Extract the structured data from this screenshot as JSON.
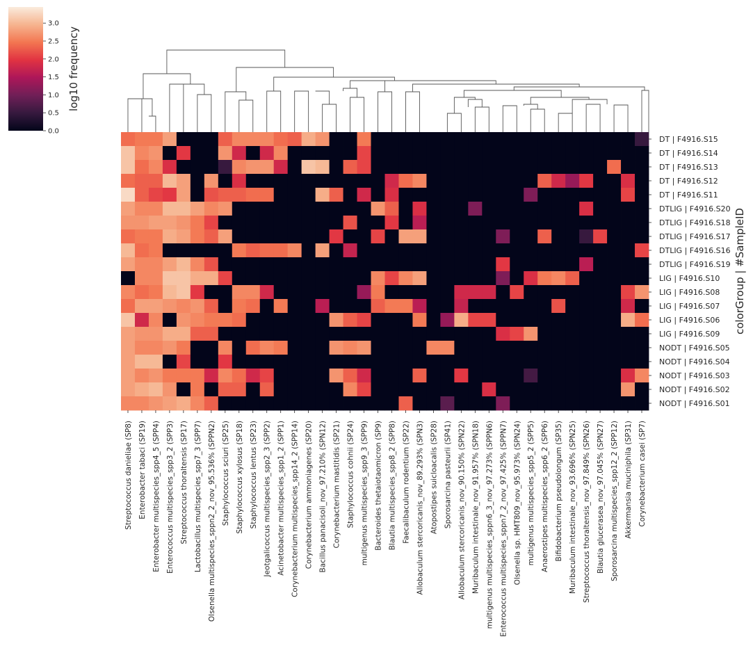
{
  "chart_data": {
    "type": "heatmap",
    "colorbar": {
      "label": "log10 frequency",
      "ticks": [
        0.0,
        0.5,
        1.0,
        1.5,
        2.0,
        2.5,
        3.0
      ],
      "tick_labels": [
        "0.0",
        "0.5",
        "1.0",
        "1.5",
        "2.0",
        "2.5",
        "3.0"
      ],
      "range": [
        0,
        3.45
      ],
      "colormap": "rocket",
      "colors": [
        "#03051a",
        "#36193e",
        "#701f57",
        "#ad1759",
        "#e13342",
        "#f37651",
        "#f6b48f",
        "#faebdd"
      ]
    },
    "ylabel": "colorGroup | #SampleID",
    "columns": [
      "Streptococcus danieliae (SP8)",
      "Enterobacter tabaci (SP19)",
      "Enterobacter multispecies_spp4_5 (SPP4)",
      "Enterococcus multispecies_spp3_2 (SPP3)",
      "Streptococcus thoraltensis (SP17)",
      "Lactobacillus multispecies_spp7_3 (SPP7)",
      "Olsenella multispecies_sppn2_2_nov_95.536% (SPPN2)",
      "Staphylococcus sciuri (SP25)",
      "Staphylococcus xylosus (SP18)",
      "Staphylococcus lentus (SP23)",
      "Jeotgalicoccus multispecies_spp2_3 (SPP2)",
      "Acinetobacter multispecies_spp1_2 (SPP1)",
      "Corynebacterium multispecies_spp14_2 (SPP14)",
      "Corynebacterium ammoniagenes (SP20)",
      "Bacillus panacisoli_nov_97.210% (SPN12)",
      "Corynebacterium mastitidis (SP21)",
      "Staphylococcus cohnii (SP24)",
      "multigenus multispecies_spp9_3 (SPP9)",
      "Bacteroides thetaiotaomicron (SP9)",
      "Blautia multispecies_spp8_2 (SPP8)",
      "Faecalibaculum rodentium (SP22)",
      "Allobaculum stercoricanis_nov_89.293% (SPN3)",
      "Atopostipes suicloacalis (SP28)",
      "Sporosarcina pasteurii (SP41)",
      "Allobaculum stercoricanis_nov_90.150% (SPN22)",
      "Muribaculum intestinale_nov_91.957% (SPN18)",
      "multigenus multispecies_sppn6_3_nov_97.273% (SPPN6)",
      "Enterococcus multispecies_sppn7_2_nov_97.425% (SPPN7)",
      "Olsenella sp. HMT809_nov_95.973% (SPN24)",
      "multigenus multispecies_spp5_2 (SPP5)",
      "Anaerostipes multispecies_spp6_2 (SPP6)",
      "Bifidobacterium pseudolongum (SP35)",
      "Muribaculum intestinale_nov_93.696% (SPN25)",
      "Streptococcus thoraltensis_nov_97.849% (SPN26)",
      "Blautia glucerasea_nov_97.045% (SPN27)",
      "Sporosarcina multispecies_spp12_2 (SPP12)",
      "Akkermansia muciniphila (SP31)",
      "Corynebacterium casei (SP7)"
    ],
    "rows": [
      "DT | F4916.S15",
      "DT | F4916.S14",
      "DT | F4916.S13",
      "DT | F4916.S12",
      "DT | F4916.S11",
      "DTLIG | F4916.S20",
      "DTLIG | F4916.S18",
      "DTLIG | F4916.S17",
      "DTLIG | F4916.S16",
      "DTLIG | F4916.S19",
      "LIG | F4916.S10",
      "LIG | F4916.S08",
      "LIG | F4916.S07",
      "LIG | F4916.S06",
      "LIG | F4916.S09",
      "NODT | F4916.S05",
      "NODT | F4916.S04",
      "NODT | F4916.S03",
      "NODT | F4916.S02",
      "NODT | F4916.S01"
    ],
    "values": [
      [
        2.4,
        2.5,
        2.5,
        2.8,
        0,
        0,
        0,
        2.3,
        2.6,
        2.6,
        2.6,
        2.4,
        2.3,
        2.9,
        2.7,
        0,
        0,
        2.5,
        0,
        0,
        0,
        0,
        0,
        0,
        0,
        0,
        0,
        0,
        0,
        0,
        0,
        0,
        0,
        0,
        0,
        0,
        0,
        0.5
      ],
      [
        3.1,
        2.6,
        2.7,
        0,
        2.0,
        0,
        0,
        2.7,
        1.8,
        0,
        1.8,
        2.6,
        0,
        0,
        0,
        0,
        0,
        2.1,
        0,
        0,
        0,
        0,
        0,
        0,
        0,
        0,
        0,
        0,
        0,
        0,
        0,
        0,
        0,
        0,
        0,
        0,
        0,
        0
      ],
      [
        3.1,
        2.4,
        2.6,
        1.9,
        0,
        0,
        0,
        0.5,
        2.6,
        2.7,
        2.7,
        1.8,
        0,
        3.1,
        3.0,
        0,
        2.3,
        2.1,
        0,
        0,
        0,
        0,
        0,
        0,
        0,
        0,
        0,
        0,
        0,
        0,
        0,
        0,
        0,
        0,
        0,
        2.4,
        0,
        0
      ],
      [
        2.4,
        2.3,
        2.3,
        3.0,
        2.8,
        0,
        2.7,
        0,
        1.9,
        0,
        0,
        0,
        0,
        0,
        0,
        0,
        0,
        0,
        0,
        1.8,
        2.4,
        2.6,
        0,
        0,
        0,
        0,
        0,
        0,
        0,
        0,
        2.3,
        1.8,
        1.3,
        2.0,
        0,
        0,
        1.9,
        0
      ],
      [
        3.3,
        2.3,
        2.1,
        2.0,
        2.8,
        0,
        2.2,
        2.3,
        2.3,
        2.4,
        2.4,
        0,
        0,
        0,
        2.9,
        2.3,
        0,
        1.8,
        0,
        1.9,
        0,
        0,
        0,
        0,
        0,
        0,
        0,
        0,
        0,
        1.1,
        0,
        0,
        0,
        0,
        0,
        0,
        2.1,
        0
      ],
      [
        2.8,
        2.6,
        2.6,
        3.0,
        3.0,
        2.8,
        2.6,
        2.7,
        0,
        0,
        0,
        0,
        0,
        0,
        0,
        0,
        0,
        0,
        2.7,
        2.3,
        0,
        1.9,
        0,
        0,
        0,
        1.1,
        0,
        0,
        0,
        0,
        0,
        0,
        0,
        1.9,
        0,
        0,
        0,
        0
      ],
      [
        2.7,
        2.7,
        2.8,
        2.8,
        2.7,
        2.5,
        2.1,
        0,
        0,
        0,
        0,
        0,
        0,
        0,
        0,
        0,
        2.2,
        0,
        0,
        2.0,
        0,
        1.6,
        0,
        0,
        0,
        0,
        0,
        0,
        0,
        0,
        0,
        0,
        0,
        0,
        0,
        0,
        0,
        0
      ],
      [
        2.4,
        2.5,
        2.5,
        2.9,
        2.8,
        2.5,
        2.3,
        2.8,
        0,
        0,
        0,
        0,
        0,
        0,
        0,
        2.0,
        0,
        0,
        2.1,
        0,
        2.8,
        2.8,
        0,
        0,
        0,
        0,
        0,
        1.1,
        0,
        0,
        2.3,
        0,
        0,
        0.5,
        2.1,
        0,
        0,
        0
      ],
      [
        3.0,
        2.4,
        2.5,
        0,
        0,
        0,
        0,
        0,
        2.5,
        2.3,
        2.4,
        2.4,
        2.6,
        0,
        2.8,
        0,
        1.7,
        0,
        0,
        0,
        0,
        0,
        0,
        0,
        0,
        0,
        0,
        0,
        0,
        0,
        0,
        0,
        0,
        0,
        0,
        0,
        0,
        2.1
      ],
      [
        2.8,
        2.6,
        2.6,
        2.8,
        3.0,
        2.6,
        2.2,
        0,
        0,
        0,
        0,
        0,
        0,
        0,
        0,
        0,
        0,
        0,
        0,
        0,
        0,
        0,
        0,
        0,
        0,
        0,
        0,
        2.0,
        0,
        0,
        0,
        0,
        0,
        1.6,
        0,
        0,
        0,
        0
      ],
      [
        0,
        2.6,
        2.6,
        3.1,
        3.1,
        2.9,
        2.9,
        2.1,
        0,
        0,
        0,
        0,
        0,
        0,
        0,
        0,
        0,
        0,
        2.6,
        2.1,
        2.6,
        2.8,
        0,
        0,
        0,
        0,
        0,
        1.1,
        0,
        1.9,
        2.5,
        2.6,
        2.3,
        0,
        0,
        0,
        0,
        0
      ],
      [
        2.6,
        2.4,
        2.5,
        3.0,
        3.1,
        2.0,
        0,
        0,
        2.6,
        2.6,
        1.8,
        0,
        0,
        0,
        0,
        0,
        0,
        1.3,
        2.5,
        0,
        0,
        0,
        0,
        0,
        1.8,
        1.8,
        1.8,
        0,
        2.1,
        0,
        0,
        0,
        0,
        0,
        0,
        0,
        2.1,
        2.7
      ],
      [
        2.4,
        2.8,
        2.8,
        2.7,
        2.6,
        2.7,
        2.3,
        0,
        2.5,
        2.4,
        0,
        2.5,
        0,
        0,
        1.6,
        0,
        0,
        0,
        2.3,
        2.5,
        2.5,
        1.6,
        0,
        0,
        1.7,
        0,
        0,
        0,
        0,
        0,
        0,
        2.2,
        0,
        0,
        0,
        0,
        1.8,
        0
      ],
      [
        3.1,
        1.8,
        2.6,
        0,
        2.7,
        2.6,
        2.5,
        2.5,
        2.4,
        0,
        0,
        0,
        0,
        0,
        0,
        2.7,
        2.3,
        2.1,
        0,
        0,
        0,
        2.5,
        0,
        1.3,
        2.9,
        2.1,
        2.1,
        0,
        0,
        0,
        0,
        0,
        0,
        0,
        0,
        0,
        2.9,
        2.4
      ],
      [
        2.8,
        2.7,
        2.7,
        2.9,
        2.9,
        2.3,
        2.3,
        0,
        0,
        0,
        0,
        0,
        0,
        0,
        0,
        0,
        0,
        0,
        0,
        0,
        0,
        0,
        0,
        0,
        0,
        0,
        0,
        1.9,
        2.1,
        2.7,
        0,
        0,
        0,
        0,
        0,
        0,
        0,
        0
      ],
      [
        2.8,
        2.6,
        2.6,
        2.7,
        2.5,
        0,
        0,
        2.6,
        0,
        2.4,
        2.6,
        2.5,
        0,
        0,
        0,
        2.7,
        2.6,
        2.7,
        0,
        0,
        0,
        0,
        2.6,
        2.6,
        0,
        0,
        0,
        0,
        0,
        0,
        0,
        0,
        0,
        0,
        0,
        0,
        0,
        0
      ],
      [
        2.8,
        3.0,
        3.0,
        0,
        2.1,
        0,
        0,
        2.0,
        0,
        0,
        0,
        0,
        0,
        0,
        0,
        0,
        0,
        0,
        0,
        0,
        0,
        0,
        0,
        0,
        0,
        0,
        0,
        0,
        0,
        0,
        0,
        0,
        0,
        0,
        0,
        0,
        0,
        0
      ],
      [
        2.8,
        2.6,
        2.7,
        2.5,
        2.5,
        2.5,
        1.8,
        2.6,
        2.4,
        1.8,
        2.1,
        0,
        0,
        0,
        0,
        2.7,
        2.3,
        1.8,
        0,
        0,
        0,
        2.3,
        0,
        0,
        2.0,
        0,
        0,
        0,
        0,
        0.6,
        0,
        0,
        0,
        0,
        0,
        0,
        1.9,
        2.6
      ],
      [
        2.8,
        2.9,
        3.0,
        2.7,
        0,
        2.5,
        0,
        2.3,
        2.3,
        0,
        2.3,
        0,
        0,
        0,
        0,
        0,
        2.6,
        2.1,
        0,
        0,
        0,
        0,
        0,
        0,
        0,
        0,
        1.9,
        0,
        0,
        0,
        0,
        0,
        0,
        0,
        0,
        0,
        2.7,
        0
      ],
      [
        2.6,
        2.6,
        2.7,
        2.8,
        2.9,
        2.6,
        2.3,
        0,
        0,
        0,
        0,
        0,
        0,
        0,
        0,
        0,
        0,
        0,
        0,
        0,
        2.3,
        0,
        0,
        0.8,
        0,
        0,
        0,
        1.1,
        0,
        0,
        0,
        0,
        0,
        0,
        0,
        0,
        0,
        0
      ]
    ],
    "dendrogram": "column clustering tree"
  }
}
